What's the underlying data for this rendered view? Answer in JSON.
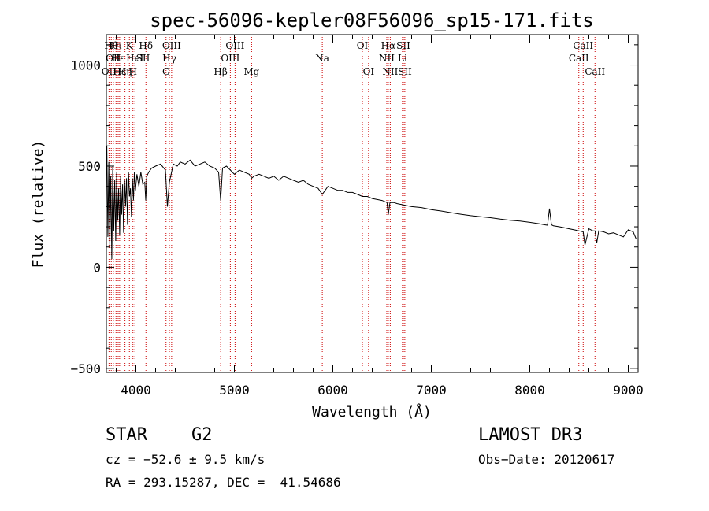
{
  "chart_data": {
    "type": "line",
    "title": "spec-56096-kepler08F56096_sp15-171.fits",
    "xlabel": "Wavelength (Å)",
    "ylabel": "Flux (relative)",
    "xlim": [
      3700,
      9100
    ],
    "ylim": [
      -520,
      1150
    ],
    "x_ticks": [
      4000,
      5000,
      6000,
      7000,
      8000,
      9000
    ],
    "y_ticks": [
      -500,
      0,
      500,
      1000
    ],
    "x_tick_labels": [
      "4000",
      "5000",
      "6000",
      "7000",
      "8000",
      "9000"
    ],
    "y_tick_labels": [
      "−500",
      "0",
      "500",
      "1000"
    ],
    "grid": false,
    "series": [
      {
        "name": "spectrum",
        "color": "#000000",
        "x": [
          3705,
          3715,
          3725,
          3735,
          3745,
          3755,
          3765,
          3775,
          3785,
          3795,
          3805,
          3815,
          3825,
          3835,
          3845,
          3855,
          3865,
          3875,
          3885,
          3895,
          3905,
          3915,
          3925,
          3935,
          3945,
          3955,
          3965,
          3975,
          3985,
          3995,
          4010,
          4030,
          4050,
          4070,
          4090,
          4100,
          4110,
          4130,
          4160,
          4200,
          4250,
          4300,
          4320,
          4340,
          4380,
          4420,
          4450,
          4500,
          4550,
          4600,
          4650,
          4700,
          4750,
          4800,
          4840,
          4861,
          4880,
          4920,
          4960,
          5000,
          5050,
          5100,
          5150,
          5175,
          5200,
          5250,
          5300,
          5350,
          5400,
          5450,
          5500,
          5550,
          5600,
          5650,
          5700,
          5750,
          5800,
          5850,
          5893,
          5950,
          6000,
          6050,
          6100,
          6150,
          6200,
          6250,
          6300,
          6350,
          6400,
          6450,
          6500,
          6550,
          6563,
          6580,
          6620,
          6650,
          6700,
          6750,
          6800,
          6900,
          7000,
          7100,
          7200,
          7300,
          7400,
          7500,
          7600,
          7700,
          7800,
          7900,
          8000,
          8100,
          8150,
          8180,
          8200,
          8220,
          8240,
          8300,
          8350,
          8400,
          8450,
          8500,
          8542,
          8560,
          8600,
          8640,
          8662,
          8680,
          8700,
          8750,
          8800,
          8850,
          8900,
          8950,
          9000,
          9050,
          9080
        ],
        "y": [
          600,
          150,
          520,
          100,
          450,
          40,
          500,
          180,
          430,
          130,
          470,
          230,
          390,
          160,
          450,
          260,
          410,
          170,
          430,
          300,
          440,
          210,
          470,
          350,
          390,
          250,
          440,
          330,
          470,
          380,
          460,
          400,
          470,
          410,
          420,
          330,
          450,
          470,
          490,
          500,
          510,
          480,
          300,
          420,
          510,
          500,
          520,
          510,
          530,
          500,
          510,
          520,
          500,
          490,
          470,
          330,
          490,
          500,
          480,
          460,
          480,
          470,
          460,
          440,
          450,
          460,
          450,
          440,
          450,
          430,
          450,
          440,
          430,
          420,
          430,
          410,
          400,
          390,
          360,
          400,
          390,
          380,
          380,
          370,
          370,
          360,
          350,
          350,
          340,
          335,
          330,
          320,
          260,
          320,
          320,
          315,
          310,
          305,
          300,
          295,
          285,
          278,
          270,
          262,
          255,
          250,
          245,
          238,
          232,
          228,
          222,
          215,
          210,
          208,
          290,
          210,
          205,
          200,
          195,
          190,
          185,
          180,
          175,
          110,
          190,
          180,
          180,
          120,
          180,
          175,
          165,
          170,
          160,
          150,
          185,
          175,
          140
        ]
      }
    ],
    "lines": [
      {
        "wave": 3727,
        "label": "OII",
        "row": 3
      },
      {
        "wave": 3750,
        "label": "Hθ",
        "row": 1
      },
      {
        "wave": 3771,
        "label": "OII",
        "row": 2
      },
      {
        "wave": 3798,
        "label": "Hι",
        "row": 1
      },
      {
        "wave": 3820,
        "label": "Hε",
        "row": 2
      },
      {
        "wave": 3835,
        "label": "Hε",
        "row": 3
      },
      {
        "wave": 3889,
        "label": "Hη",
        "row": 3
      },
      {
        "wave": 3934,
        "label": "K",
        "row": 1
      },
      {
        "wave": 3970,
        "label": "H",
        "row": 3
      },
      {
        "wave": 3990,
        "label": "HeI",
        "row": 2
      },
      {
        "wave": 4072,
        "label": "SII",
        "row": 2
      },
      {
        "wave": 4102,
        "label": "Hδ",
        "row": 1
      },
      {
        "wave": 4306,
        "label": "G",
        "row": 3
      },
      {
        "wave": 4340,
        "label": "Hγ",
        "row": 2
      },
      {
        "wave": 4363,
        "label": "OIII",
        "row": 1
      },
      {
        "wave": 4861,
        "label": "Hβ",
        "row": 3
      },
      {
        "wave": 4959,
        "label": "OIII",
        "row": 2
      },
      {
        "wave": 5007,
        "label": "OIII",
        "row": 1
      },
      {
        "wave": 5175,
        "label": "Mg",
        "row": 3
      },
      {
        "wave": 5893,
        "label": "Na",
        "row": 2
      },
      {
        "wave": 6300,
        "label": "OI",
        "row": 1
      },
      {
        "wave": 6363,
        "label": "OI",
        "row": 3
      },
      {
        "wave": 6548,
        "label": "NII",
        "row": 2
      },
      {
        "wave": 6563,
        "label": "Hα",
        "row": 1
      },
      {
        "wave": 6583,
        "label": "NII",
        "row": 3
      },
      {
        "wave": 6707,
        "label": "Li",
        "row": 2
      },
      {
        "wave": 6716,
        "label": "SII",
        "row": 1
      },
      {
        "wave": 6731,
        "label": "SII",
        "row": 3
      },
      {
        "wave": 8498,
        "label": "CaII",
        "row": 2
      },
      {
        "wave": 8542,
        "label": "CaII",
        "row": 1
      },
      {
        "wave": 8662,
        "label": "CaII",
        "row": 3
      }
    ]
  },
  "info": {
    "object_type": "STAR",
    "subclass": "G2",
    "survey": "LAMOST DR3",
    "redshift_text": "cz = −52.6 ± 9.5 km/s",
    "obs_date": "Obs−Date: 20120617",
    "coords": "RA = 293.15287, DEC =  41.54686"
  },
  "colors": {
    "spectrum": "#000000",
    "line_markers": "#cc0000"
  }
}
